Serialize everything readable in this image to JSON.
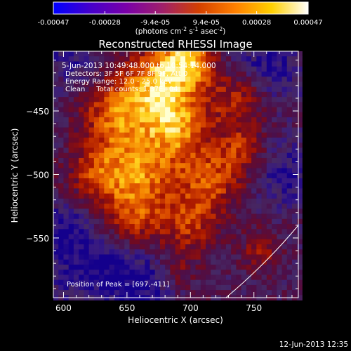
{
  "chart_data": {
    "type": "heatmap",
    "title": "Reconstructed RHESSI Image",
    "xlabel": "Heliocentric X (arcsec)",
    "ylabel": "Heliocentric Y (arcsec)",
    "xlim": [
      592,
      785
    ],
    "ylim": [
      -597,
      -403
    ],
    "x_ticks": [
      600,
      650,
      700,
      750
    ],
    "x_tick_labels": [
      "600",
      "650",
      "700",
      "750"
    ],
    "y_ticks": [
      -450,
      -500,
      -550
    ],
    "y_tick_labels": [
      "−450",
      "−500",
      "−550"
    ],
    "colorbar": {
      "range": [
        -0.00047,
        0.00047
      ],
      "ticks": [
        -0.00047,
        -0.00028,
        -9.4e-05,
        9.4e-05,
        0.00028,
        0.00047
      ],
      "tick_labels": [
        "-0.00047",
        "-0.00028",
        "-9.4e-05",
        "9.4e-05",
        "0.00028",
        "0.00047"
      ],
      "units": {
        "prefix": "(photons cm",
        "exp1": "-2",
        "mid1": " s",
        "exp2": "-1",
        "mid2": " asec",
        "exp3": "-2",
        "suffix": ")"
      },
      "colors": [
        "#0000ff",
        "#4400cc",
        "#7a00a8",
        "#a0206a",
        "#d44000",
        "#ff8000",
        "#ffd000",
        "#ffffff"
      ]
    },
    "annotations": [
      "5-Jun-2013 10:49:48.000 to 10:54:14.000",
      "Detectors: 3F 5F 6F 7F 8F 9F, Att 0",
      "Energy Range: 12.0 - 25.0 keV",
      "Clean     Total counts: 1.37E+04"
    ],
    "peak_label": "Position of Peak = [697,-411]",
    "peak": [
      697,
      -411
    ],
    "limb_arc": [
      [
        728,
        -597
      ],
      [
        760,
        -570
      ],
      [
        785,
        -540
      ]
    ],
    "footer": "12-Jun-2013 12:35"
  }
}
